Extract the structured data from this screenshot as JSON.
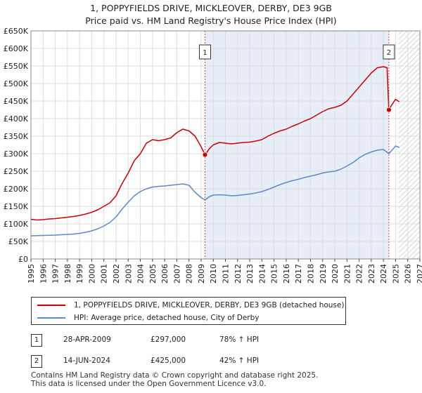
{
  "header": {
    "title_line1": "1, POPPYFIELDS DRIVE, MICKLEOVER, DERBY, DE3 9GB",
    "title_line2": "Price paid vs. HM Land Registry's House Price Index (HPI)"
  },
  "colors": {
    "property": "#cc0000",
    "hpi": "#5b8ac8",
    "shade": "#e8eef8",
    "hatch": "#bbbbbb"
  },
  "chart_data": {
    "type": "line",
    "title": "Price paid vs. HM Land Registry's House Price Index (HPI)",
    "xlabel": "",
    "ylabel": "",
    "xlim": [
      1995,
      2027
    ],
    "ylim": [
      0,
      650000
    ],
    "y_ticks": [
      0,
      50000,
      100000,
      150000,
      200000,
      250000,
      300000,
      350000,
      400000,
      450000,
      500000,
      550000,
      600000,
      650000
    ],
    "y_tick_labels": [
      "£0",
      "£50K",
      "£100K",
      "£150K",
      "£200K",
      "£250K",
      "£300K",
      "£350K",
      "£400K",
      "£450K",
      "£500K",
      "£550K",
      "£600K",
      "£650K"
    ],
    "x_ticks": [
      1995,
      1996,
      1997,
      1998,
      1999,
      2000,
      2001,
      2002,
      2003,
      2004,
      2005,
      2006,
      2007,
      2008,
      2009,
      2010,
      2011,
      2012,
      2013,
      2014,
      2015,
      2016,
      2017,
      2018,
      2019,
      2020,
      2021,
      2022,
      2023,
      2024,
      2025,
      2026,
      2027
    ],
    "x_tick_labels": [
      "1995",
      "1996",
      "1997",
      "1998",
      "1999",
      "2000",
      "2001",
      "2002",
      "2003",
      "2004",
      "2005",
      "2006",
      "2007",
      "2008",
      "2009",
      "2010",
      "2011",
      "2012",
      "2013",
      "2014",
      "2015",
      "2016",
      "2017",
      "2018",
      "2019",
      "2020",
      "2021",
      "2022",
      "2023",
      "2024",
      "2025",
      "2026",
      "2027"
    ],
    "shaded_range": [
      2009.32,
      2024.45
    ],
    "future_from": 2025.25,
    "series": [
      {
        "name": "1, POPPYFIELDS DRIVE, MICKLEOVER, DERBY, DE3 9GB (detached house)",
        "color": "#cc0000",
        "x": [
          1995.0,
          1995.5,
          1996.0,
          1996.5,
          1997.0,
          1997.5,
          1998.0,
          1998.5,
          1999.0,
          1999.5,
          2000.0,
          2000.5,
          2001.0,
          2001.5,
          2002.0,
          2002.5,
          2003.0,
          2003.5,
          2004.0,
          2004.5,
          2005.0,
          2005.5,
          2006.0,
          2006.5,
          2007.0,
          2007.5,
          2008.0,
          2008.5,
          2009.0,
          2009.32,
          2009.7,
          2010.0,
          2010.5,
          2011.0,
          2011.5,
          2012.0,
          2012.5,
          2013.0,
          2013.5,
          2014.0,
          2014.5,
          2015.0,
          2015.5,
          2016.0,
          2016.5,
          2017.0,
          2017.5,
          2018.0,
          2018.5,
          2019.0,
          2019.5,
          2020.0,
          2020.5,
          2021.0,
          2021.5,
          2022.0,
          2022.5,
          2023.0,
          2023.5,
          2024.0,
          2024.3,
          2024.45,
          2024.7,
          2025.0,
          2025.3
        ],
        "values": [
          113000,
          111000,
          112000,
          114000,
          115000,
          117000,
          119000,
          121000,
          124000,
          128000,
          133000,
          140000,
          150000,
          160000,
          180000,
          215000,
          245000,
          280000,
          300000,
          330000,
          340000,
          337000,
          340000,
          345000,
          360000,
          370000,
          365000,
          350000,
          320000,
          297000,
          315000,
          325000,
          332000,
          330000,
          328000,
          330000,
          332000,
          333000,
          336000,
          340000,
          350000,
          358000,
          365000,
          370000,
          378000,
          385000,
          393000,
          400000,
          410000,
          420000,
          428000,
          432000,
          438000,
          450000,
          470000,
          490000,
          510000,
          530000,
          545000,
          548000,
          545000,
          425000,
          440000,
          455000,
          448000
        ]
      },
      {
        "name": "HPI: Average price, detached house, City of Derby",
        "color": "#5b8ac8",
        "x": [
          1995.0,
          1995.5,
          1996.0,
          1996.5,
          1997.0,
          1997.5,
          1998.0,
          1998.5,
          1999.0,
          1999.5,
          2000.0,
          2000.5,
          2001.0,
          2001.5,
          2002.0,
          2002.5,
          2003.0,
          2003.5,
          2004.0,
          2004.5,
          2005.0,
          2005.5,
          2006.0,
          2006.5,
          2007.0,
          2007.5,
          2008.0,
          2008.5,
          2009.0,
          2009.32,
          2009.7,
          2010.0,
          2010.5,
          2011.0,
          2011.5,
          2012.0,
          2012.5,
          2013.0,
          2013.5,
          2014.0,
          2014.5,
          2015.0,
          2015.5,
          2016.0,
          2016.5,
          2017.0,
          2017.5,
          2018.0,
          2018.5,
          2019.0,
          2019.5,
          2020.0,
          2020.5,
          2021.0,
          2021.5,
          2022.0,
          2022.5,
          2023.0,
          2023.5,
          2024.0,
          2024.45,
          2024.7,
          2025.0,
          2025.3
        ],
        "values": [
          66000,
          66500,
          67000,
          67500,
          68000,
          69000,
          70000,
          71000,
          73000,
          76000,
          80000,
          86000,
          94000,
          104000,
          120000,
          142000,
          162000,
          180000,
          192000,
          200000,
          205000,
          207000,
          208000,
          210000,
          212000,
          214000,
          210000,
          190000,
          175000,
          168000,
          178000,
          182000,
          183000,
          182000,
          180000,
          181000,
          183000,
          185000,
          188000,
          192000,
          198000,
          205000,
          212000,
          218000,
          223000,
          227000,
          232000,
          236000,
          240000,
          245000,
          248000,
          250000,
          256000,
          265000,
          275000,
          288000,
          298000,
          305000,
          310000,
          312000,
          300000,
          310000,
          322000,
          318000
        ]
      }
    ],
    "markers": [
      {
        "label": "1",
        "x": 2009.32,
        "value": 297000,
        "box_value": 590000
      },
      {
        "label": "2",
        "x": 2024.45,
        "value": 425000,
        "box_value": 590000
      }
    ]
  },
  "legend": {
    "property_label": "1, POPPYFIELDS DRIVE, MICKLEOVER, DERBY, DE3 9GB (detached house)",
    "hpi_label": "HPI: Average price, detached house, City of Derby"
  },
  "sales": [
    {
      "num": "1",
      "date": "28-APR-2009",
      "price": "£297,000",
      "hpi": "78% ↑ HPI"
    },
    {
      "num": "2",
      "date": "14-JUN-2024",
      "price": "£425,000",
      "hpi": "42% ↑ HPI"
    }
  ],
  "footer": {
    "line1": "Contains HM Land Registry data © Crown copyright and database right 2025.",
    "line2": "This data is licensed under the Open Government Licence v3.0."
  }
}
